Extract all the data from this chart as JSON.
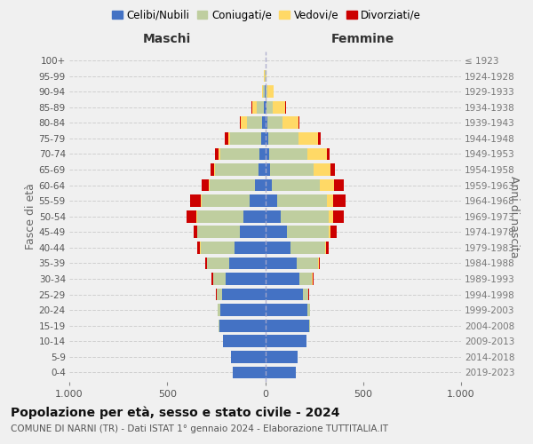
{
  "age_groups": [
    "0-4",
    "5-9",
    "10-14",
    "15-19",
    "20-24",
    "25-29",
    "30-34",
    "35-39",
    "40-44",
    "45-49",
    "50-54",
    "55-59",
    "60-64",
    "65-69",
    "70-74",
    "75-79",
    "80-84",
    "85-89",
    "90-94",
    "95-99",
    "100+"
  ],
  "birth_years": [
    "2019-2023",
    "2014-2018",
    "2009-2013",
    "2004-2008",
    "1999-2003",
    "1994-1998",
    "1989-1993",
    "1984-1988",
    "1979-1983",
    "1974-1978",
    "1969-1973",
    "1964-1968",
    "1959-1963",
    "1954-1958",
    "1949-1953",
    "1944-1948",
    "1939-1943",
    "1934-1938",
    "1929-1933",
    "1924-1928",
    "≤ 1923"
  ],
  "maschi": {
    "celibi": [
      165,
      175,
      215,
      235,
      230,
      220,
      200,
      185,
      155,
      130,
      110,
      80,
      50,
      35,
      30,
      20,
      15,
      5,
      2,
      0,
      0
    ],
    "coniugati": [
      0,
      0,
      2,
      5,
      12,
      25,
      65,
      110,
      175,
      215,
      235,
      245,
      235,
      220,
      200,
      160,
      80,
      40,
      8,
      2,
      0
    ],
    "vedovi": [
      0,
      0,
      0,
      0,
      0,
      2,
      2,
      2,
      2,
      2,
      5,
      5,
      5,
      5,
      10,
      10,
      30,
      20,
      8,
      3,
      0
    ],
    "divorziati": [
      0,
      0,
      0,
      0,
      0,
      5,
      8,
      10,
      15,
      20,
      50,
      55,
      35,
      20,
      15,
      15,
      5,
      5,
      0,
      0,
      0
    ]
  },
  "femmine": {
    "nubili": [
      155,
      165,
      210,
      225,
      215,
      195,
      175,
      160,
      130,
      110,
      80,
      60,
      35,
      25,
      20,
      15,
      10,
      5,
      2,
      0,
      0
    ],
    "coniugate": [
      0,
      0,
      2,
      5,
      12,
      25,
      65,
      110,
      175,
      215,
      245,
      255,
      245,
      220,
      195,
      155,
      80,
      35,
      10,
      2,
      0
    ],
    "vedove": [
      0,
      0,
      0,
      0,
      0,
      2,
      2,
      3,
      5,
      10,
      20,
      30,
      70,
      90,
      100,
      100,
      80,
      60,
      30,
      5,
      0
    ],
    "divorziate": [
      0,
      0,
      0,
      0,
      0,
      3,
      5,
      8,
      15,
      30,
      55,
      65,
      50,
      20,
      15,
      15,
      5,
      5,
      0,
      0,
      0
    ]
  },
  "colors": {
    "celibi": "#4472C4",
    "coniugati": "#BFCE9F",
    "vedovi": "#FFD966",
    "divorziati": "#CC0000"
  },
  "title": "Popolazione per età, sesso e stato civile - 2024",
  "subtitle": "COMUNE DI NARNI (TR) - Dati ISTAT 1° gennaio 2024 - Elaborazione TUTTITALIA.IT",
  "ylabel_left": "Fasce di età",
  "ylabel_right": "Anni di nascita",
  "xlabel_left": "Maschi",
  "xlabel_right": "Femmine",
  "xlim": 1000,
  "bg_color": "#f0f0f0",
  "legend_labels": [
    "Celibi/Nubili",
    "Coniugati/e",
    "Vedovi/e",
    "Divorziati/e"
  ]
}
